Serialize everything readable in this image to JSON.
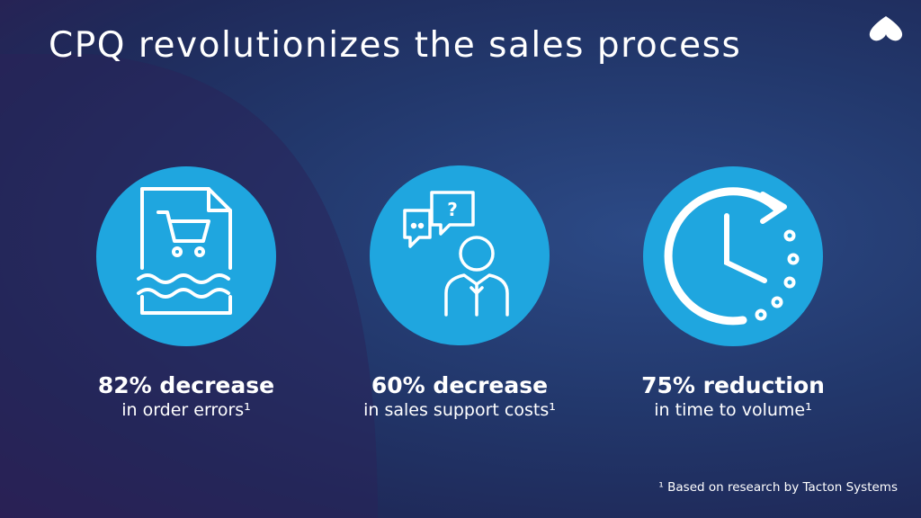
{
  "title": "CPQ revolutionizes the sales process",
  "stats": [
    {
      "headline": "82% decrease",
      "description": "in order errors¹"
    },
    {
      "headline": "60% decrease",
      "description": "in sales support costs¹"
    },
    {
      "headline": "75% reduction",
      "description": "in time to volume¹"
    }
  ],
  "footnote": "¹ Based on research by Tacton Systems"
}
